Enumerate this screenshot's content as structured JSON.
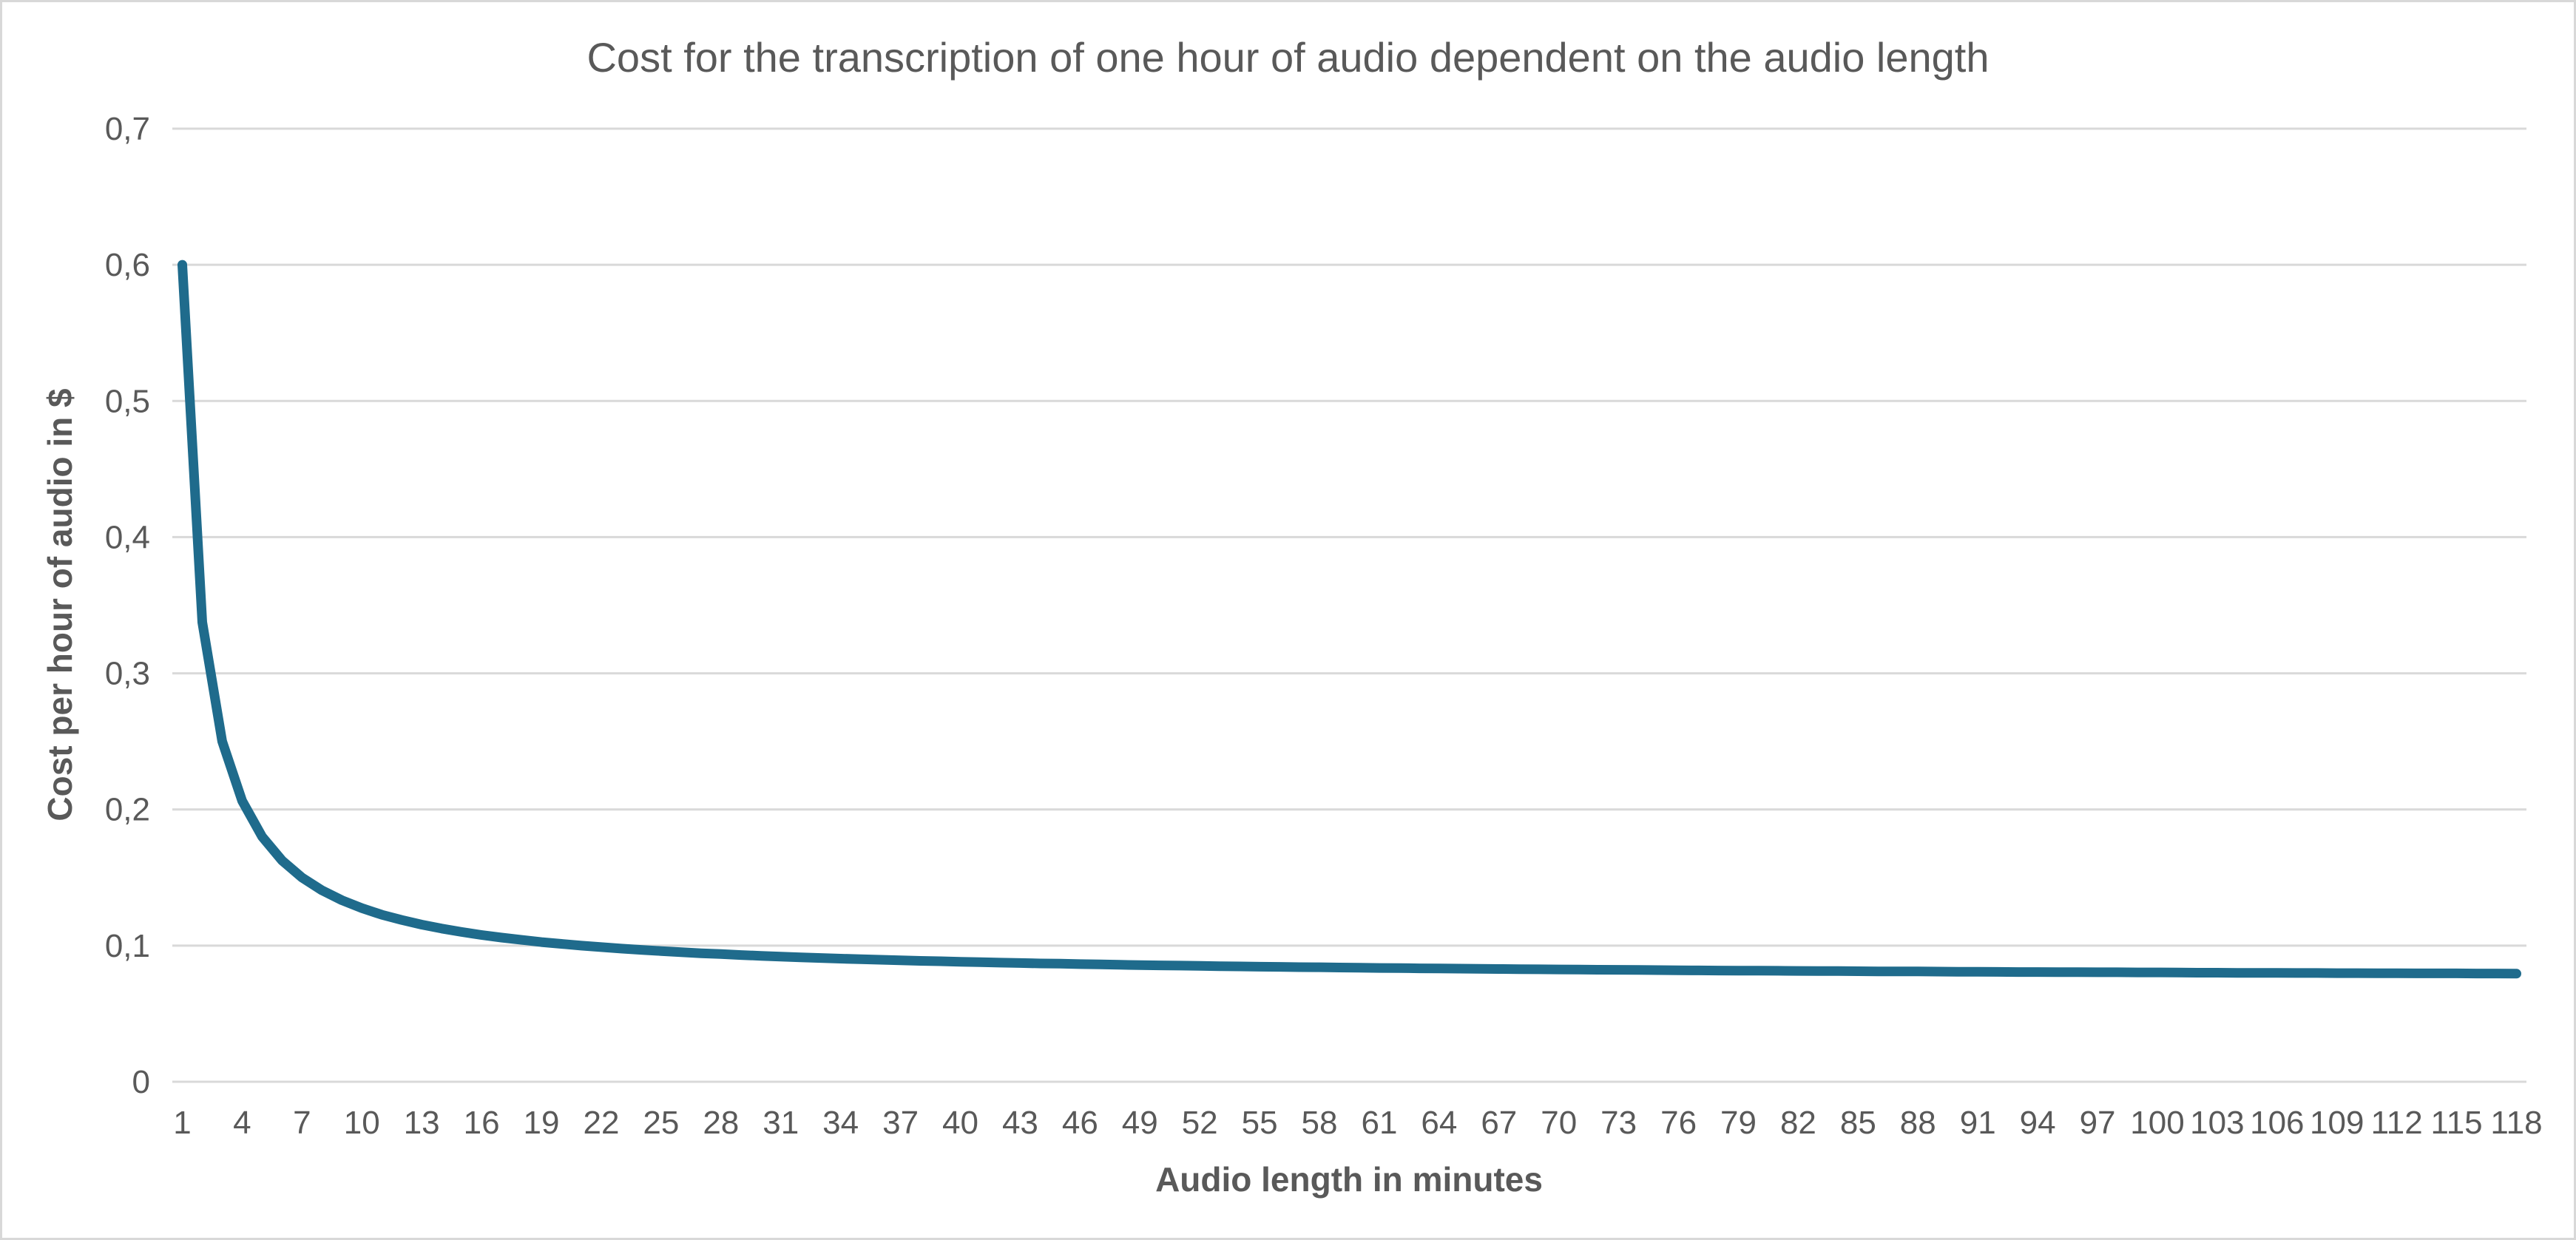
{
  "chart_data": {
    "type": "line",
    "title": "Cost for the transcription of one hour of audio dependent on the audio length",
    "xlabel": "Audio length in minutes",
    "ylabel": "Cost per hour of audio in $",
    "x": [
      1,
      2,
      3,
      4,
      5,
      6,
      7,
      8,
      9,
      10,
      11,
      12,
      13,
      14,
      15,
      16,
      17,
      18,
      19,
      20,
      21,
      22,
      23,
      24,
      25,
      26,
      27,
      28,
      29,
      30,
      31,
      32,
      33,
      34,
      35,
      36,
      37,
      38,
      39,
      40,
      41,
      42,
      43,
      44,
      45,
      46,
      47,
      48,
      49,
      50,
      51,
      52,
      53,
      54,
      55,
      56,
      57,
      58,
      59,
      60,
      61,
      62,
      63,
      64,
      65,
      66,
      67,
      68,
      69,
      70,
      71,
      72,
      73,
      74,
      75,
      76,
      77,
      78,
      79,
      80,
      81,
      82,
      83,
      84,
      85,
      86,
      87,
      88,
      89,
      90,
      91,
      92,
      93,
      94,
      95,
      96,
      97,
      98,
      99,
      100,
      101,
      102,
      103,
      104,
      105,
      106,
      107,
      108,
      109,
      110,
      111,
      112,
      113,
      114,
      115,
      116,
      117,
      118
    ],
    "values": [
      0.6,
      0.3375,
      0.25,
      0.2063,
      0.18,
      0.1625,
      0.15,
      0.1406,
      0.1333,
      0.1275,
      0.1227,
      0.1188,
      0.1154,
      0.1125,
      0.11,
      0.1078,
      0.1059,
      0.1042,
      0.1026,
      0.1013,
      0.1,
      0.0989,
      0.0978,
      0.0969,
      0.096,
      0.0952,
      0.0944,
      0.0938,
      0.0931,
      0.0925,
      0.0919,
      0.0914,
      0.0909,
      0.0904,
      0.09,
      0.0896,
      0.0892,
      0.0888,
      0.0885,
      0.0881,
      0.0878,
      0.0875,
      0.0872,
      0.0869,
      0.0867,
      0.0864,
      0.0862,
      0.0859,
      0.0857,
      0.0855,
      0.0853,
      0.0851,
      0.0849,
      0.0847,
      0.0845,
      0.0844,
      0.0842,
      0.0841,
      0.0839,
      0.0838,
      0.0836,
      0.0835,
      0.0833,
      0.0832,
      0.0831,
      0.083,
      0.0828,
      0.0827,
      0.0826,
      0.0825,
      0.0824,
      0.0823,
      0.0822,
      0.0821,
      0.082,
      0.0819,
      0.0818,
      0.0817,
      0.0816,
      0.0816,
      0.0815,
      0.0814,
      0.0813,
      0.0813,
      0.0812,
      0.0811,
      0.081,
      0.081,
      0.0809,
      0.0808,
      0.0808,
      0.0807,
      0.0806,
      0.0806,
      0.0805,
      0.0805,
      0.0804,
      0.0804,
      0.0803,
      0.0803,
      0.0802,
      0.0801,
      0.0801,
      0.08,
      0.08,
      0.08,
      0.0799,
      0.0799,
      0.0798,
      0.0798,
      0.0797,
      0.0797,
      0.0796,
      0.0796,
      0.0796,
      0.0795,
      0.0795,
      0.0794
    ],
    "ylim": [
      0,
      0.7
    ],
    "y_tick_values": [
      0,
      0.1,
      0.2,
      0.3,
      0.4,
      0.5,
      0.6,
      0.7
    ],
    "y_tick_labels": [
      "0",
      "0,1",
      "0,2",
      "0,3",
      "0,4",
      "0,5",
      "0,6",
      "0,7"
    ],
    "x_tick_step": 3,
    "x_tick_labels": [
      "1",
      "4",
      "7",
      "10",
      "13",
      "16",
      "19",
      "22",
      "25",
      "28",
      "31",
      "34",
      "37",
      "40",
      "43",
      "46",
      "49",
      "52",
      "55",
      "58",
      "61",
      "64",
      "67",
      "70",
      "73",
      "76",
      "79",
      "82",
      "85",
      "88",
      "91",
      "94",
      "97",
      "100",
      "103",
      "106",
      "109",
      "112",
      "115",
      "118"
    ],
    "grid": "horizontal",
    "legend": "none",
    "colors": {
      "line": "#1F6B8C",
      "grid": "#D9D9D9",
      "text": "#595959",
      "border": "#D8D8D8",
      "background": "#FFFFFF"
    }
  }
}
